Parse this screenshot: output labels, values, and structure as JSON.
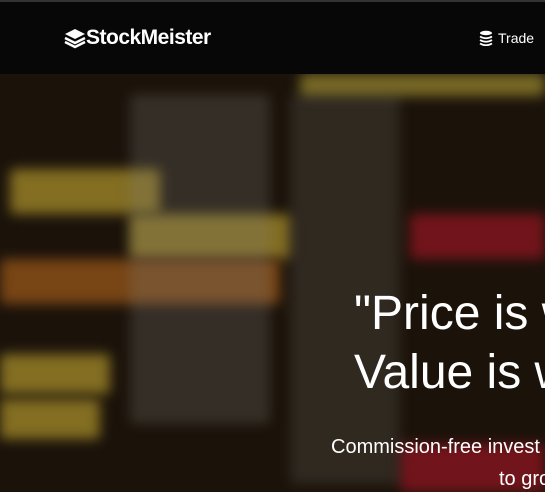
{
  "header": {
    "logo": "StockMeister",
    "nav": [
      "Trade"
    ]
  },
  "hero": {
    "headline": [
      "\"Price is w",
      "Value is w"
    ],
    "subtitle": [
      "Commission-free invest",
      "to gro"
    ]
  }
}
